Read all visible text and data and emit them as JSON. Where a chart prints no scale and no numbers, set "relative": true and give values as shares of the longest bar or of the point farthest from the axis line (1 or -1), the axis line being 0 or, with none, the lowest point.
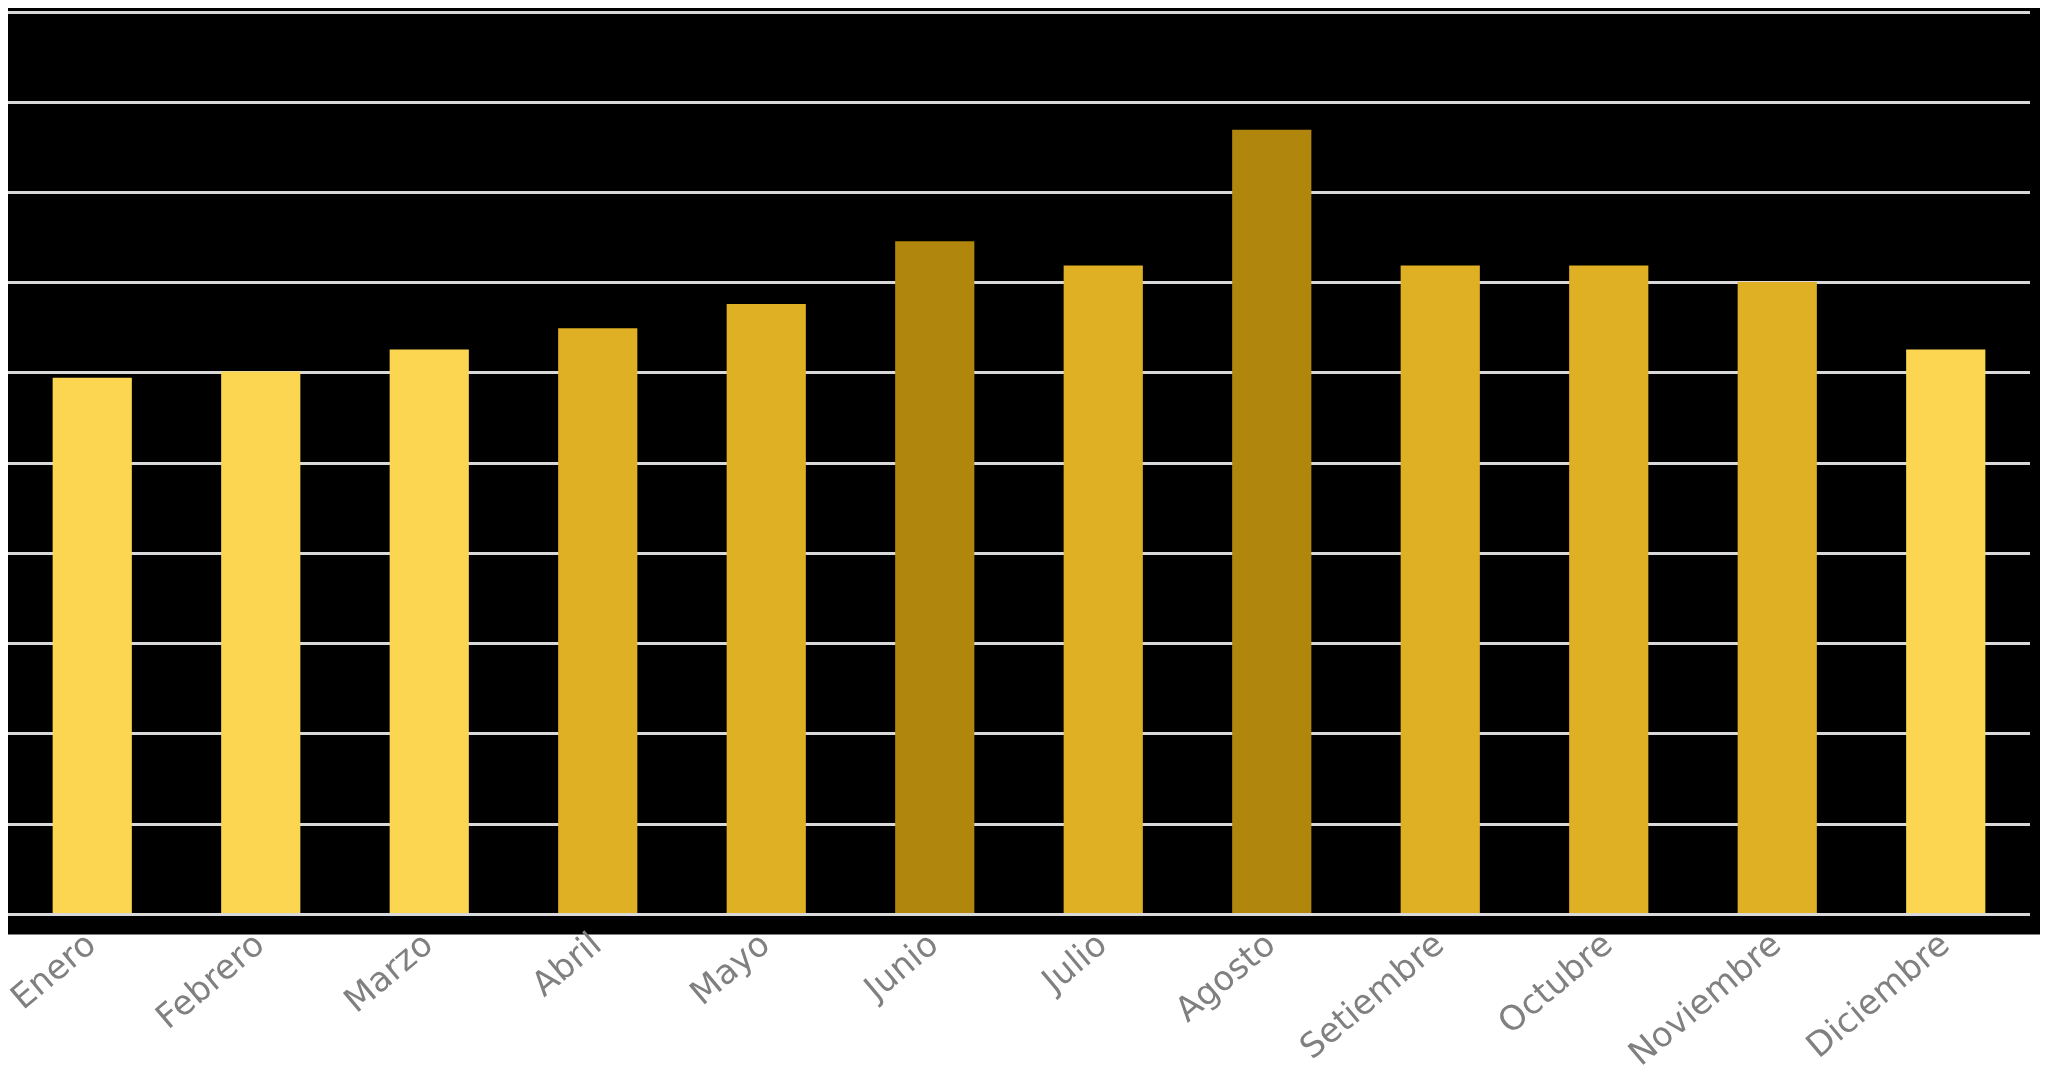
{
  "chart_data": {
    "type": "bar",
    "relative": true,
    "grid": true,
    "categories": [
      "Enero",
      "Febrero",
      "Marzo",
      "Abril",
      "Mayo",
      "Junio",
      "Julio",
      "Agosto",
      "Setiembre",
      "Octubre",
      "Noviembre",
      "Diciembre"
    ],
    "values": [
      0.684,
      0.692,
      0.72,
      0.747,
      0.778,
      0.858,
      0.827,
      1,
      0.827,
      0.827,
      0.806,
      0.72
    ],
    "colors": [
      "#fdd651",
      "#fdd651",
      "#fdd651",
      "#dfb023",
      "#dfb023",
      "#b0860c",
      "#dfb023",
      "#b0860c",
      "#dfb023",
      "#dfb023",
      "#dfb023",
      "#fdd651"
    ]
  }
}
